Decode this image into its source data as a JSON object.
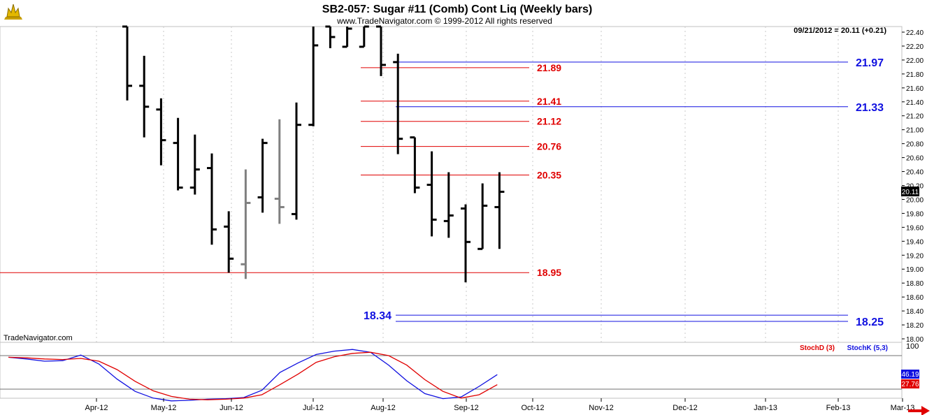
{
  "header": {
    "title": "SB2-057:  Sugar #11 (Comb) Cont Liq  (Weekly bars)",
    "copyright": "www.TradeNavigator.com © 1999-2012 All rights reserved",
    "last_quote": "09/21/2012 = 20.11 (+0.21)",
    "watermark": "TradeNavigator.com"
  },
  "colors": {
    "bars": "#000000",
    "bars_alt": "#808080",
    "resistance_red": "#e00000",
    "level_blue": "#1010e0",
    "stoch_d": "#e00000",
    "stoch_k": "#1010e0"
  },
  "chart_data": [
    {
      "type": "ohlc",
      "title": "SB2-057:  Sugar #11 (Comb) Cont Liq  (Weekly bars)",
      "ylim": [
        17.95,
        22.55
      ],
      "y_ticks": [
        "22.40",
        "22.20",
        "22.00",
        "21.80",
        "21.60",
        "21.40",
        "21.20",
        "21.00",
        "20.80",
        "20.60",
        "20.40",
        "20.20",
        "20.00",
        "19.80",
        "19.60",
        "19.40",
        "19.20",
        "19.00",
        "18.80",
        "18.60",
        "18.40",
        "18.20",
        "18.00"
      ],
      "x_ticks": [
        "Apr-12",
        "May-12",
        "Jun-12",
        "Jul-12",
        "Aug-12",
        "Sep-12",
        "Oct-12",
        "Nov-12",
        "Dec-12",
        "Jan-13",
        "Feb-13",
        "Mar-13"
      ],
      "last_value_label": "20.11",
      "bars": [
        {
          "o": 22.55,
          "h": 22.55,
          "l": 21.42,
          "c": 21.63,
          "gray": false
        },
        {
          "o": 21.63,
          "h": 22.06,
          "l": 20.89,
          "c": 21.33,
          "gray": false
        },
        {
          "o": 21.29,
          "h": 21.45,
          "l": 20.49,
          "c": 20.85,
          "gray": false
        },
        {
          "o": 20.81,
          "h": 21.17,
          "l": 20.13,
          "c": 20.17,
          "gray": false
        },
        {
          "o": 20.17,
          "h": 20.93,
          "l": 20.07,
          "c": 20.43,
          "gray": false
        },
        {
          "o": 20.45,
          "h": 20.66,
          "l": 19.35,
          "c": 19.57,
          "gray": false
        },
        {
          "o": 19.61,
          "h": 19.83,
          "l": 18.95,
          "c": 19.15,
          "gray": false
        },
        {
          "o": 19.07,
          "h": 20.43,
          "l": 18.86,
          "c": 19.95,
          "gray": true
        },
        {
          "o": 20.03,
          "h": 20.87,
          "l": 19.81,
          "c": 20.81,
          "gray": false
        },
        {
          "o": 20.01,
          "h": 21.15,
          "l": 19.65,
          "c": 19.89,
          "gray": true
        },
        {
          "o": 19.79,
          "h": 21.39,
          "l": 19.71,
          "c": 21.07,
          "gray": false
        },
        {
          "o": 21.07,
          "h": 22.55,
          "l": 21.05,
          "c": 22.21,
          "gray": false
        },
        {
          "o": 22.49,
          "h": 22.55,
          "l": 22.17,
          "c": 22.33,
          "gray": false
        },
        {
          "o": 22.19,
          "h": 22.55,
          "l": 22.19,
          "c": 22.45,
          "gray": false
        },
        {
          "o": 22.19,
          "h": 22.55,
          "l": 22.19,
          "c": 22.55,
          "gray": false
        },
        {
          "o": 22.55,
          "h": 22.55,
          "l": 21.77,
          "c": 21.93,
          "gray": false
        },
        {
          "o": 21.97,
          "h": 22.09,
          "l": 20.65,
          "c": 20.87,
          "gray": false
        },
        {
          "o": 20.89,
          "h": 20.89,
          "l": 20.09,
          "c": 20.17,
          "gray": false
        },
        {
          "o": 20.21,
          "h": 20.69,
          "l": 19.47,
          "c": 19.71,
          "gray": false
        },
        {
          "o": 19.69,
          "h": 20.39,
          "l": 19.45,
          "c": 19.77,
          "gray": false
        },
        {
          "o": 19.87,
          "h": 19.93,
          "l": 18.81,
          "c": 19.39,
          "gray": false
        },
        {
          "o": 19.29,
          "h": 20.23,
          "l": 19.29,
          "c": 19.91,
          "gray": false
        },
        {
          "o": 19.89,
          "h": 20.39,
          "l": 19.29,
          "c": 20.11,
          "gray": false
        }
      ],
      "levels": [
        {
          "value": 21.89,
          "label": "21.89",
          "color": "red"
        },
        {
          "value": 21.41,
          "label": "21.41",
          "color": "red"
        },
        {
          "value": 21.12,
          "label": "21.12",
          "color": "red"
        },
        {
          "value": 20.76,
          "label": "20.76",
          "color": "red"
        },
        {
          "value": 20.35,
          "label": "20.35",
          "color": "red"
        },
        {
          "value": 18.95,
          "label": "18.95",
          "color": "red"
        },
        {
          "value": 21.97,
          "label": "21.97",
          "color": "blue"
        },
        {
          "value": 21.33,
          "label": "21.33",
          "color": "blue"
        },
        {
          "value": 18.34,
          "label": "18.34",
          "color": "blue"
        },
        {
          "value": 18.25,
          "label": "18.25",
          "color": "blue"
        }
      ]
    },
    {
      "type": "line",
      "ylim": [
        0,
        100
      ],
      "y_ticks": [
        "100"
      ],
      "legend": [
        {
          "name": "StochD (3)",
          "color": "red"
        },
        {
          "name": "StochK (5,3)",
          "color": "blue"
        }
      ],
      "reference_levels": [
        80,
        20
      ],
      "last_values": {
        "k": "46.19",
        "d": "27.76"
      },
      "series": [
        {
          "name": "StochK (5,3)",
          "values": [
            77,
            74,
            70,
            71,
            81,
            65,
            38,
            16,
            4,
            -1,
            0,
            2,
            3,
            5,
            18,
            50,
            67,
            82,
            88,
            91,
            86,
            63,
            35,
            12,
            3,
            6,
            25,
            46
          ]
        },
        {
          "name": "StochD (3)",
          "values": [
            77,
            76,
            74,
            73,
            75,
            70,
            55,
            34,
            17,
            7,
            2,
            1,
            2,
            4,
            10,
            28,
            47,
            68,
            78,
            84,
            86,
            80,
            63,
            37,
            16,
            4,
            10,
            28
          ]
        }
      ]
    }
  ]
}
